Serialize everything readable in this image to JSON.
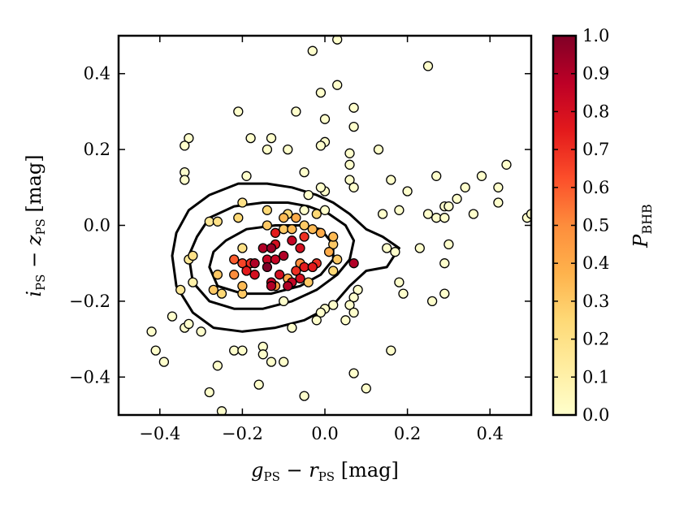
{
  "chart_data": {
    "type": "scatter",
    "title": "",
    "xlabel": {
      "g": "g",
      "gsub": "PS",
      "minus": " − ",
      "r": "r",
      "rsub": "PS",
      "unit": " [mag]"
    },
    "ylabel": {
      "i": "i",
      "isub": "PS",
      "minus": " − ",
      "z": "z",
      "zsub": "PS",
      "unit": " [mag]"
    },
    "xlim": [
      -0.5,
      0.5
    ],
    "ylim": [
      -0.5,
      0.5
    ],
    "x_ticks": [
      -0.4,
      -0.2,
      0.0,
      0.2,
      0.4
    ],
    "x_tick_labels": [
      "−0.4",
      "−0.2",
      "0.0",
      "0.2",
      "0.4"
    ],
    "y_ticks": [
      -0.4,
      -0.2,
      0.0,
      0.2,
      0.4
    ],
    "y_tick_labels": [
      "−0.4",
      "−0.2",
      "0.0",
      "0.2",
      "0.4"
    ],
    "colorbar": {
      "label": "P",
      "label_sub": "BHB",
      "range": [
        0.0,
        1.0
      ],
      "ticks": [
        0.0,
        0.1,
        0.2,
        0.3,
        0.4,
        0.5,
        0.6,
        0.7,
        0.8,
        0.9,
        1.0
      ],
      "tick_labels": [
        "0.0",
        "0.1",
        "0.2",
        "0.3",
        "0.4",
        "0.5",
        "0.6",
        "0.7",
        "0.8",
        "0.9",
        "1.0"
      ],
      "colormap": [
        "#ffffcc",
        "#ffeda0",
        "#fed976",
        "#feb24c",
        "#fd8d3c",
        "#fc4e2a",
        "#e31a1c",
        "#bd0026",
        "#800026"
      ]
    },
    "contours": [
      {
        "level": "outer",
        "points": [
          [
            -0.37,
            -0.08
          ],
          [
            -0.36,
            -0.16
          ],
          [
            -0.32,
            -0.23
          ],
          [
            -0.27,
            -0.27
          ],
          [
            -0.2,
            -0.28
          ],
          [
            -0.12,
            -0.27
          ],
          [
            -0.05,
            -0.25
          ],
          [
            0.02,
            -0.21
          ],
          [
            0.06,
            -0.16
          ],
          [
            0.1,
            -0.12
          ],
          [
            0.15,
            -0.11
          ],
          [
            0.18,
            -0.06
          ],
          [
            0.14,
            -0.03
          ],
          [
            0.1,
            -0.01
          ],
          [
            0.06,
            0.03
          ],
          [
            0.02,
            0.06
          ],
          [
            -0.02,
            0.08
          ],
          [
            -0.08,
            0.1
          ],
          [
            -0.14,
            0.11
          ],
          [
            -0.21,
            0.11
          ],
          [
            -0.28,
            0.08
          ],
          [
            -0.33,
            0.04
          ],
          [
            -0.36,
            -0.02
          ],
          [
            -0.37,
            -0.08
          ]
        ]
      },
      {
        "level": "middle",
        "points": [
          [
            -0.33,
            -0.08
          ],
          [
            -0.32,
            -0.15
          ],
          [
            -0.28,
            -0.2
          ],
          [
            -0.22,
            -0.22
          ],
          [
            -0.15,
            -0.22
          ],
          [
            -0.08,
            -0.2
          ],
          [
            -0.02,
            -0.17
          ],
          [
            0.03,
            -0.13
          ],
          [
            0.06,
            -0.09
          ],
          [
            0.07,
            -0.04
          ],
          [
            0.05,
            0.0
          ],
          [
            0.01,
            0.03
          ],
          [
            -0.04,
            0.05
          ],
          [
            -0.09,
            0.06
          ],
          [
            -0.15,
            0.06
          ],
          [
            -0.22,
            0.05
          ],
          [
            -0.28,
            0.02
          ],
          [
            -0.31,
            -0.03
          ],
          [
            -0.33,
            -0.08
          ]
        ]
      },
      {
        "level": "inner",
        "points": [
          [
            -0.28,
            -0.11
          ],
          [
            -0.26,
            -0.16
          ],
          [
            -0.2,
            -0.18
          ],
          [
            -0.13,
            -0.18
          ],
          [
            -0.06,
            -0.16
          ],
          [
            -0.01,
            -0.13
          ],
          [
            0.02,
            -0.09
          ],
          [
            0.02,
            -0.05
          ],
          [
            -0.01,
            -0.01
          ],
          [
            -0.06,
            0.0
          ],
          [
            -0.12,
            0.0
          ],
          [
            -0.19,
            -0.01
          ],
          [
            -0.24,
            -0.04
          ],
          [
            -0.27,
            -0.07
          ],
          [
            -0.28,
            -0.11
          ]
        ]
      }
    ],
    "points": [
      {
        "x": -0.03,
        "y": 0.46,
        "p": 0.0
      },
      {
        "x": 0.03,
        "y": 0.49,
        "p": 0.0
      },
      {
        "x": 0.25,
        "y": 0.42,
        "p": 0.0
      },
      {
        "x": 0.03,
        "y": 0.37,
        "p": 0.0
      },
      {
        "x": -0.01,
        "y": 0.35,
        "p": 0.0
      },
      {
        "x": -0.07,
        "y": 0.3,
        "p": 0.0
      },
      {
        "x": -0.21,
        "y": 0.3,
        "p": 0.0
      },
      {
        "x": 0.07,
        "y": 0.31,
        "p": 0.0
      },
      {
        "x": 0.0,
        "y": 0.28,
        "p": 0.0
      },
      {
        "x": 0.07,
        "y": 0.26,
        "p": 0.0
      },
      {
        "x": -0.18,
        "y": 0.23,
        "p": 0.0
      },
      {
        "x": -0.13,
        "y": 0.23,
        "p": 0.0
      },
      {
        "x": -0.33,
        "y": 0.23,
        "p": 0.0
      },
      {
        "x": -0.34,
        "y": 0.21,
        "p": 0.0
      },
      {
        "x": 0.0,
        "y": 0.22,
        "p": 0.0
      },
      {
        "x": -0.01,
        "y": 0.21,
        "p": 0.0
      },
      {
        "x": -0.14,
        "y": 0.2,
        "p": 0.0
      },
      {
        "x": -0.09,
        "y": 0.2,
        "p": 0.0
      },
      {
        "x": 0.06,
        "y": 0.19,
        "p": 0.0
      },
      {
        "x": 0.13,
        "y": 0.2,
        "p": 0.0
      },
      {
        "x": 0.06,
        "y": 0.16,
        "p": 0.0
      },
      {
        "x": 0.44,
        "y": 0.16,
        "p": 0.0
      },
      {
        "x": -0.34,
        "y": 0.14,
        "p": 0.0
      },
      {
        "x": -0.34,
        "y": 0.12,
        "p": 0.0
      },
      {
        "x": -0.05,
        "y": 0.14,
        "p": 0.0
      },
      {
        "x": 0.06,
        "y": 0.12,
        "p": 0.0
      },
      {
        "x": 0.38,
        "y": 0.13,
        "p": 0.0
      },
      {
        "x": 0.27,
        "y": 0.13,
        "p": 0.0
      },
      {
        "x": -0.19,
        "y": 0.13,
        "p": 0.0
      },
      {
        "x": 0.16,
        "y": 0.12,
        "p": 0.0
      },
      {
        "x": 0.07,
        "y": 0.1,
        "p": 0.0
      },
      {
        "x": 0.34,
        "y": 0.1,
        "p": 0.0
      },
      {
        "x": 0.42,
        "y": 0.1,
        "p": 0.0
      },
      {
        "x": 0.2,
        "y": 0.09,
        "p": 0.0
      },
      {
        "x": 0.0,
        "y": 0.09,
        "p": 0.0
      },
      {
        "x": -0.01,
        "y": 0.1,
        "p": 0.0
      },
      {
        "x": -0.04,
        "y": 0.08,
        "p": 0.0
      },
      {
        "x": 0.32,
        "y": 0.07,
        "p": 0.0
      },
      {
        "x": 0.29,
        "y": 0.05,
        "p": 0.0
      },
      {
        "x": 0.3,
        "y": 0.05,
        "p": 0.0
      },
      {
        "x": 0.42,
        "y": 0.06,
        "p": 0.0
      },
      {
        "x": 0.18,
        "y": 0.04,
        "p": 0.0
      },
      {
        "x": 0.14,
        "y": 0.03,
        "p": 0.0
      },
      {
        "x": 0.25,
        "y": 0.03,
        "p": 0.0
      },
      {
        "x": 0.27,
        "y": 0.02,
        "p": 0.0
      },
      {
        "x": 0.29,
        "y": 0.02,
        "p": 0.0
      },
      {
        "x": 0.36,
        "y": 0.03,
        "p": 0.0
      },
      {
        "x": 0.49,
        "y": 0.02,
        "p": 0.0
      },
      {
        "x": 0.5,
        "y": 0.03,
        "p": 0.0
      },
      {
        "x": 0.0,
        "y": 0.04,
        "p": 0.0
      },
      {
        "x": -0.05,
        "y": 0.04,
        "p": 0.0
      },
      {
        "x": 0.3,
        "y": -0.05,
        "p": 0.0
      },
      {
        "x": 0.15,
        "y": -0.06,
        "p": 0.0
      },
      {
        "x": 0.23,
        "y": -0.06,
        "p": 0.0
      },
      {
        "x": 0.17,
        "y": -0.07,
        "p": 0.0
      },
      {
        "x": 0.29,
        "y": -0.1,
        "p": 0.0
      },
      {
        "x": 0.18,
        "y": -0.15,
        "p": 0.0
      },
      {
        "x": 0.19,
        "y": -0.18,
        "p": 0.0
      },
      {
        "x": 0.29,
        "y": -0.18,
        "p": 0.0
      },
      {
        "x": 0.26,
        "y": -0.2,
        "p": 0.0
      },
      {
        "x": 0.08,
        "y": -0.17,
        "p": 0.0
      },
      {
        "x": 0.07,
        "y": -0.19,
        "p": 0.0
      },
      {
        "x": 0.02,
        "y": -0.21,
        "p": 0.0
      },
      {
        "x": 0.0,
        "y": -0.22,
        "p": 0.0
      },
      {
        "x": -0.01,
        "y": -0.23,
        "p": 0.0
      },
      {
        "x": 0.06,
        "y": -0.21,
        "p": 0.0
      },
      {
        "x": 0.07,
        "y": -0.23,
        "p": 0.0
      },
      {
        "x": -0.1,
        "y": -0.2,
        "p": 0.0
      },
      {
        "x": -0.02,
        "y": -0.25,
        "p": 0.0
      },
      {
        "x": 0.05,
        "y": -0.25,
        "p": 0.0
      },
      {
        "x": -0.37,
        "y": -0.24,
        "p": 0.0
      },
      {
        "x": -0.34,
        "y": -0.27,
        "p": 0.0
      },
      {
        "x": -0.33,
        "y": -0.26,
        "p": 0.0
      },
      {
        "x": -0.3,
        "y": -0.28,
        "p": 0.0
      },
      {
        "x": -0.42,
        "y": -0.28,
        "p": 0.0
      },
      {
        "x": -0.41,
        "y": -0.33,
        "p": 0.0
      },
      {
        "x": -0.39,
        "y": -0.36,
        "p": 0.0
      },
      {
        "x": -0.22,
        "y": -0.33,
        "p": 0.0
      },
      {
        "x": -0.2,
        "y": -0.33,
        "p": 0.0
      },
      {
        "x": -0.15,
        "y": -0.32,
        "p": 0.0
      },
      {
        "x": -0.15,
        "y": -0.34,
        "p": 0.0
      },
      {
        "x": -0.13,
        "y": -0.36,
        "p": 0.0
      },
      {
        "x": -0.1,
        "y": -0.36,
        "p": 0.0
      },
      {
        "x": -0.08,
        "y": -0.27,
        "p": 0.0
      },
      {
        "x": -0.26,
        "y": -0.37,
        "p": 0.0
      },
      {
        "x": -0.16,
        "y": -0.42,
        "p": 0.0
      },
      {
        "x": -0.28,
        "y": -0.44,
        "p": 0.0
      },
      {
        "x": -0.25,
        "y": -0.49,
        "p": 0.0
      },
      {
        "x": -0.05,
        "y": -0.45,
        "p": 0.0
      },
      {
        "x": 0.07,
        "y": -0.39,
        "p": 0.0
      },
      {
        "x": 0.1,
        "y": -0.43,
        "p": 0.0
      },
      {
        "x": 0.16,
        "y": -0.33,
        "p": 0.0
      },
      {
        "x": -0.2,
        "y": -0.06,
        "p": 0.2
      },
      {
        "x": -0.33,
        "y": -0.09,
        "p": 0.15
      },
      {
        "x": -0.32,
        "y": -0.15,
        "p": 0.1
      },
      {
        "x": -0.35,
        "y": -0.17,
        "p": 0.15
      },
      {
        "x": -0.32,
        "y": -0.08,
        "p": 0.2
      },
      {
        "x": -0.28,
        "y": 0.01,
        "p": 0.15
      },
      {
        "x": -0.26,
        "y": 0.01,
        "p": 0.2
      },
      {
        "x": -0.21,
        "y": 0.02,
        "p": 0.25
      },
      {
        "x": -0.2,
        "y": 0.06,
        "p": 0.2
      },
      {
        "x": -0.14,
        "y": 0.04,
        "p": 0.25
      },
      {
        "x": -0.14,
        "y": 0.0,
        "p": 0.3
      },
      {
        "x": -0.1,
        "y": 0.02,
        "p": 0.35
      },
      {
        "x": -0.1,
        "y": -0.01,
        "p": 0.3
      },
      {
        "x": -0.07,
        "y": 0.02,
        "p": 0.4
      },
      {
        "x": -0.08,
        "y": -0.01,
        "p": 0.35
      },
      {
        "x": -0.09,
        "y": 0.03,
        "p": 0.25
      },
      {
        "x": -0.02,
        "y": 0.03,
        "p": 0.25
      },
      {
        "x": -0.05,
        "y": 0.0,
        "p": 0.3
      },
      {
        "x": -0.03,
        "y": -0.01,
        "p": 0.35
      },
      {
        "x": -0.01,
        "y": -0.02,
        "p": 0.4
      },
      {
        "x": 0.02,
        "y": -0.03,
        "p": 0.35
      },
      {
        "x": 0.02,
        "y": -0.05,
        "p": 0.3
      },
      {
        "x": 0.01,
        "y": -0.07,
        "p": 0.4
      },
      {
        "x": 0.03,
        "y": -0.09,
        "p": 0.3
      },
      {
        "x": 0.02,
        "y": -0.12,
        "p": 0.25
      },
      {
        "x": -0.06,
        "y": -0.1,
        "p": 0.5
      },
      {
        "x": -0.03,
        "y": -0.11,
        "p": 0.45
      },
      {
        "x": -0.09,
        "y": -0.14,
        "p": 0.4
      },
      {
        "x": -0.04,
        "y": -0.15,
        "p": 0.3
      },
      {
        "x": -0.12,
        "y": -0.16,
        "p": 0.45
      },
      {
        "x": -0.2,
        "y": -0.16,
        "p": 0.35
      },
      {
        "x": -0.22,
        "y": -0.13,
        "p": 0.5
      },
      {
        "x": -0.26,
        "y": -0.13,
        "p": 0.3
      },
      {
        "x": -0.27,
        "y": -0.17,
        "p": 0.3
      },
      {
        "x": -0.25,
        "y": -0.18,
        "p": 0.25
      },
      {
        "x": -0.2,
        "y": -0.18,
        "p": 0.3
      },
      {
        "x": -0.22,
        "y": -0.09,
        "p": 0.6
      },
      {
        "x": -0.2,
        "y": -0.1,
        "p": 0.65
      },
      {
        "x": -0.18,
        "y": -0.1,
        "p": 0.7
      },
      {
        "x": -0.19,
        "y": -0.12,
        "p": 0.75
      },
      {
        "x": -0.17,
        "y": -0.13,
        "p": 0.8
      },
      {
        "x": -0.15,
        "y": -0.06,
        "p": 0.9
      },
      {
        "x": -0.14,
        "y": -0.09,
        "p": 0.85
      },
      {
        "x": -0.14,
        "y": -0.11,
        "p": 1.0
      },
      {
        "x": -0.13,
        "y": -0.06,
        "p": 0.95
      },
      {
        "x": -0.12,
        "y": -0.09,
        "p": 0.85
      },
      {
        "x": -0.11,
        "y": -0.13,
        "p": 0.8
      },
      {
        "x": -0.1,
        "y": -0.08,
        "p": 0.9
      },
      {
        "x": -0.08,
        "y": -0.04,
        "p": 0.85
      },
      {
        "x": -0.06,
        "y": -0.06,
        "p": 0.8
      },
      {
        "x": -0.05,
        "y": -0.11,
        "p": 0.75
      },
      {
        "x": -0.03,
        "y": -0.11,
        "p": 0.75
      },
      {
        "x": -0.02,
        "y": -0.1,
        "p": 0.7
      },
      {
        "x": -0.06,
        "y": -0.14,
        "p": 0.8
      },
      {
        "x": -0.08,
        "y": -0.15,
        "p": 0.85
      },
      {
        "x": -0.09,
        "y": -0.16,
        "p": 0.9
      },
      {
        "x": -0.13,
        "y": -0.15,
        "p": 0.85
      },
      {
        "x": -0.13,
        "y": -0.16,
        "p": 0.9
      },
      {
        "x": -0.07,
        "y": -0.12,
        "p": 0.7
      },
      {
        "x": -0.12,
        "y": -0.05,
        "p": 0.8
      },
      {
        "x": -0.05,
        "y": -0.03,
        "p": 0.7
      },
      {
        "x": -0.12,
        "y": -0.02,
        "p": 0.75
      },
      {
        "x": -0.17,
        "y": -0.1,
        "p": 0.9
      },
      {
        "x": 0.07,
        "y": -0.1,
        "p": 0.9
      }
    ]
  }
}
